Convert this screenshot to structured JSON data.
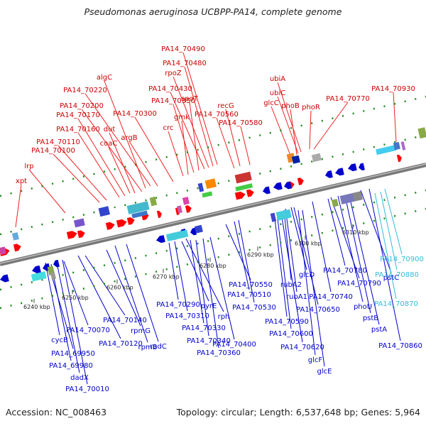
{
  "title": "Pseudomonas aeruginosa UCBPP-PA14, complete genome",
  "footer": {
    "accession": "Accession: NC_008463",
    "summary": "Topology: circular; Length: 6,537,648 bp; Genes: 5,964"
  },
  "colors": {
    "forward": "#ff0000",
    "reverse": "#0000cc",
    "highlight": "#33bbdd"
  },
  "ticks": [
    "6240 kbp",
    "6250 kbp",
    "6260 kbp",
    "6270 kbp",
    "6280 kbp",
    "6290 kbp",
    "6300 kbp",
    "6310 kbp"
  ],
  "top_labels": [
    "xpt",
    "lrp",
    "PA14_70100",
    "PA14_70110",
    "coaC",
    "PA14_70160",
    "PA14_70170",
    "dut",
    "PA14_70200",
    "algC",
    "PA14_70220",
    "argB",
    "PA14_70300",
    "crc",
    "gmk",
    "PA14_70350",
    "spoT",
    "PA14_70430",
    "rpoZ",
    "PA14_70480",
    "PA14_70490",
    "PA14_70560",
    "recG",
    "PA14_70580",
    "glcC",
    "phoB",
    "ubiC",
    "ubiA",
    "phoR",
    "PA14_70770",
    "PA14_70930"
  ],
  "bottom_labels": [
    "cycB",
    "PA14_69950",
    "PA14_69980",
    "dadX",
    "PA14_70010",
    "PA14_70070",
    "PA14_70120",
    "PA14_70140",
    "rpmG",
    "rpmB",
    "radC",
    "PA14_70290",
    "PA14_70310",
    "pyrE",
    "rph",
    "PA14_70330",
    "PA14_70340",
    "PA14_70360",
    "PA14_70400",
    "PA14_70550",
    "PA14_70510",
    "PA14_70530",
    "rubA2",
    "rubA1",
    "glcD",
    "PA14_70650",
    "PA14_70590",
    "PA14_70600",
    "PA14_70620",
    "glcF",
    "glcE",
    "PA14_70740",
    "PA14_70780",
    "PA14_70790",
    "phoU",
    "pstB",
    "pstA",
    "pstC",
    "PA14_70860",
    "PA14_70900",
    "PA14_70880",
    "PA14_70870"
  ]
}
